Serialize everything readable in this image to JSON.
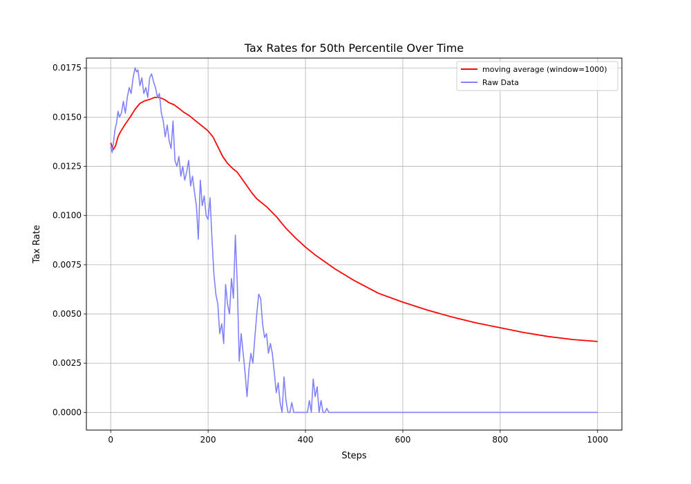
{
  "chart_data": {
    "type": "line",
    "title": "Tax Rates for 50th Percentile Over Time",
    "xlabel": "Steps",
    "ylabel": "Tax Rate",
    "xlim": [
      -50,
      1050
    ],
    "ylim": [
      -0.0009,
      0.018
    ],
    "xticks": [
      0,
      200,
      400,
      600,
      800,
      1000
    ],
    "xtick_labels": [
      "0",
      "200",
      "400",
      "600",
      "800",
      "1000"
    ],
    "yticks": [
      0.0,
      0.0025,
      0.005,
      0.0075,
      0.01,
      0.0125,
      0.015,
      0.0175
    ],
    "ytick_labels": [
      "0.0000",
      "0.0025",
      "0.0050",
      "0.0075",
      "0.0100",
      "0.0125",
      "0.0150",
      "0.0175"
    ],
    "grid": true,
    "legend_position": "top-right",
    "series": [
      {
        "name": "moving average (window=1000)",
        "color": "#ff0000",
        "x": [
          0,
          5,
          10,
          15,
          20,
          30,
          40,
          50,
          60,
          70,
          80,
          90,
          100,
          110,
          120,
          130,
          140,
          150,
          160,
          170,
          180,
          190,
          200,
          210,
          220,
          230,
          240,
          250,
          260,
          270,
          280,
          290,
          300,
          310,
          320,
          330,
          340,
          350,
          360,
          380,
          400,
          420,
          440,
          460,
          480,
          500,
          550,
          600,
          650,
          700,
          750,
          800,
          850,
          900,
          950,
          1000
        ],
        "y": [
          0.0137,
          0.01335,
          0.01355,
          0.014,
          0.01425,
          0.01465,
          0.015,
          0.0154,
          0.0157,
          0.01583,
          0.0159,
          0.016,
          0.016,
          0.0159,
          0.01573,
          0.01563,
          0.01545,
          0.01525,
          0.0151,
          0.0149,
          0.0147,
          0.0145,
          0.0143,
          0.014,
          0.0135,
          0.013,
          0.01265,
          0.0124,
          0.0122,
          0.01185,
          0.0115,
          0.01115,
          0.01085,
          0.01065,
          0.01045,
          0.0102,
          0.00995,
          0.00965,
          0.00935,
          0.00885,
          0.0084,
          0.008,
          0.00765,
          0.0073,
          0.007,
          0.0067,
          0.00605,
          0.0056,
          0.0052,
          0.00485,
          0.00455,
          0.0043,
          0.00405,
          0.00385,
          0.0037,
          0.0036
        ]
      },
      {
        "name": "Raw Data",
        "color": "#8080ff",
        "x": [
          0,
          3,
          6,
          9,
          12,
          15,
          18,
          22,
          26,
          30,
          34,
          38,
          42,
          46,
          50,
          53,
          56,
          60,
          64,
          68,
          72,
          76,
          80,
          84,
          88,
          92,
          96,
          100,
          104,
          108,
          112,
          116,
          120,
          124,
          128,
          132,
          136,
          140,
          144,
          148,
          152,
          156,
          160,
          164,
          168,
          172,
          176,
          180,
          184,
          188,
          192,
          196,
          200,
          204,
          208,
          212,
          216,
          220,
          224,
          228,
          232,
          236,
          240,
          244,
          248,
          252,
          256,
          260,
          264,
          268,
          272,
          276,
          280,
          284,
          288,
          292,
          296,
          300,
          304,
          308,
          312,
          316,
          320,
          324,
          328,
          332,
          336,
          340,
          344,
          348,
          352,
          356,
          360,
          364,
          368,
          372,
          376,
          380,
          384,
          388,
          392,
          396,
          400,
          404,
          408,
          412,
          416,
          420,
          424,
          428,
          432,
          436,
          440,
          444,
          448,
          452,
          460,
          500,
          600,
          700,
          800,
          900,
          1000
        ],
        "y": [
          0.0135,
          0.0132,
          0.0138,
          0.0144,
          0.0147,
          0.0153,
          0.015,
          0.0152,
          0.0158,
          0.0152,
          0.016,
          0.0165,
          0.0162,
          0.017,
          0.0175,
          0.0173,
          0.0174,
          0.0166,
          0.017,
          0.0162,
          0.0165,
          0.016,
          0.017,
          0.0172,
          0.0168,
          0.0165,
          0.016,
          0.0162,
          0.0152,
          0.0148,
          0.014,
          0.0146,
          0.0138,
          0.0134,
          0.0148,
          0.0128,
          0.0125,
          0.013,
          0.012,
          0.0125,
          0.0118,
          0.0122,
          0.0128,
          0.0115,
          0.012,
          0.0112,
          0.0105,
          0.0088,
          0.0118,
          0.0105,
          0.011,
          0.01,
          0.0098,
          0.0109,
          0.0088,
          0.007,
          0.006,
          0.0055,
          0.004,
          0.0045,
          0.0035,
          0.0065,
          0.0055,
          0.005,
          0.0068,
          0.0058,
          0.009,
          0.0065,
          0.0026,
          0.004,
          0.003,
          0.002,
          0.0008,
          0.0022,
          0.003,
          0.0025,
          0.0038,
          0.005,
          0.006,
          0.0058,
          0.0045,
          0.0038,
          0.004,
          0.003,
          0.0035,
          0.003,
          0.002,
          0.001,
          0.0015,
          0.0005,
          0.0,
          0.0018,
          0.0006,
          0.0,
          0.0,
          0.0005,
          0.0,
          0.0,
          0.0,
          0.0,
          0.0,
          0.0,
          0.0,
          0.0,
          0.0006,
          0.0,
          0.0017,
          0.0008,
          0.0013,
          0.0,
          0.0006,
          0.0,
          0.0,
          0.0002,
          0.0,
          0.0,
          0.0,
          0.0,
          0.0,
          0.0,
          0.0,
          0.0,
          0.0
        ]
      }
    ]
  }
}
